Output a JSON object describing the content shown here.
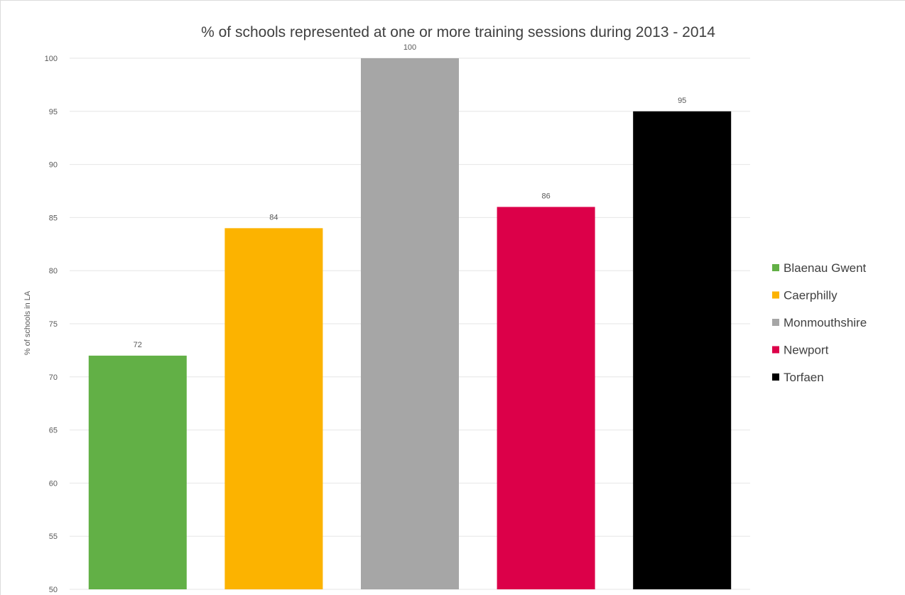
{
  "chart_data": {
    "type": "bar",
    "title": "% of schools represented at one or more training sessions during 2013 - 2014",
    "xlabel": "",
    "ylabel": "% of schools in LA",
    "ylim": [
      50,
      100
    ],
    "yticks": [
      50,
      55,
      60,
      65,
      70,
      75,
      80,
      85,
      90,
      95,
      100
    ],
    "grid": true,
    "legend_position": "right",
    "categories": [
      "Blaenau Gwent",
      "Caerphilly",
      "Monmouthshire",
      "Newport",
      "Torfaen"
    ],
    "values": [
      72,
      84,
      100,
      86,
      95
    ],
    "colors": [
      "#62b046",
      "#fcb300",
      "#a6a6a6",
      "#dc0049",
      "#000000"
    ],
    "legend": [
      "Blaenau Gwent",
      "Caerphilly",
      "Monmouthshire",
      "Newport",
      "Torfaen"
    ]
  }
}
